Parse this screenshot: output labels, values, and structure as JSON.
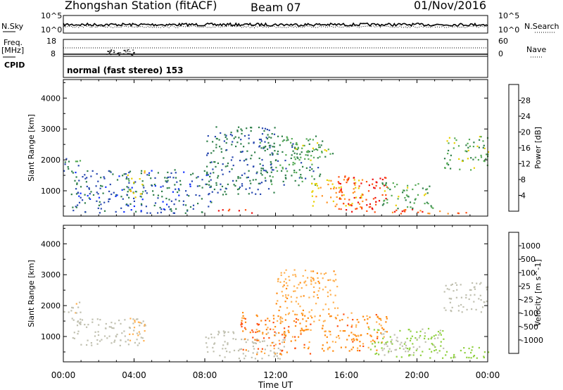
{
  "header": {
    "station": "Zhongshan Station (fitACF)",
    "beam": "Beam 07",
    "date": "01/Nov/2016"
  },
  "status": {
    "nsky_label": "N.Sky",
    "nsearch_label": "N.Search",
    "freq_label_1": "Freq.",
    "freq_label_2": "[MHz]",
    "nave_label": "Nave",
    "cpid_label": "CPID",
    "cpid_text": "normal (fast stereo) 153",
    "noise_ticks_left": [
      "10^5",
      "10^0"
    ],
    "noise_ticks_right": [
      "10^5",
      "10^0"
    ],
    "freq_ticks": [
      "18",
      "8"
    ],
    "nave_ticks": [
      "60",
      "0"
    ]
  },
  "colors": {
    "power": [
      "#1030ff",
      "#2a4ab0",
      "#2f7f4a",
      "#55aa55",
      "#e8d000",
      "#ff9020",
      "#ff5010",
      "#ee1010"
    ],
    "velocity": [
      "#ee1010",
      "#ff5010",
      "#ff8a10",
      "#ffb050",
      "#c0c0b0",
      "#90d040",
      "#3a9a50",
      "#2a6a9a",
      "#1a3aa0"
    ]
  },
  "chart_data": [
    {
      "type": "heatmap",
      "ylabel": "Slant Range [km]",
      "yticks": [
        "1000",
        "2000",
        "3000",
        "4000"
      ],
      "ylim": [
        180,
        4600
      ],
      "colorbar_label": "Power [dB]",
      "colorbar_ticks": [
        "4",
        "8",
        "12",
        "16",
        "20",
        "24",
        "28"
      ],
      "clim": [
        0,
        32
      ],
      "blobs": [
        {
          "t0": 0.0,
          "t1": 1.0,
          "r0": 1600,
          "r1": 2150,
          "v": 10
        },
        {
          "t0": 0.4,
          "t1": 8.4,
          "r0": 300,
          "r1": 1700,
          "v": 7
        },
        {
          "t0": 3.6,
          "t1": 4.6,
          "r0": 800,
          "r1": 1700,
          "v": 17
        },
        {
          "t0": 8.6,
          "t1": 11.0,
          "r0": 280,
          "r1": 420,
          "v": 26
        },
        {
          "t0": 8.0,
          "t1": 12.0,
          "r0": 900,
          "r1": 3100,
          "v": 8
        },
        {
          "t0": 11.0,
          "t1": 14.5,
          "r0": 1200,
          "r1": 2800,
          "v": 11
        },
        {
          "t0": 13.0,
          "t1": 15.2,
          "r0": 2000,
          "r1": 2700,
          "v": 14
        },
        {
          "t0": 14.0,
          "t1": 17.0,
          "r0": 500,
          "r1": 1400,
          "v": 20
        },
        {
          "t0": 15.5,
          "t1": 18.3,
          "r0": 300,
          "r1": 1500,
          "v": 28
        },
        {
          "t0": 17.5,
          "t1": 23.9,
          "r0": 280,
          "r1": 420,
          "v": 26
        },
        {
          "t0": 18.0,
          "t1": 21.0,
          "r0": 450,
          "r1": 1300,
          "v": 13
        },
        {
          "t0": 21.5,
          "t1": 24.0,
          "r0": 1700,
          "r1": 2800,
          "v": 13
        }
      ]
    },
    {
      "type": "heatmap",
      "ylabel": "Slant Range [km]",
      "yticks": [
        "1000",
        "2000",
        "3000",
        "4000"
      ],
      "ylim": [
        180,
        4600
      ],
      "xlabel": "Time UT",
      "xticks": [
        "00:00",
        "04:00",
        "08:00",
        "12:00",
        "16:00",
        "20:00",
        "00:00"
      ],
      "xlim": [
        0,
        24
      ],
      "colorbar_label": "Velocity [m s^-1]",
      "colorbar_ticks": [
        "-1000",
        "-500",
        "-100",
        "-25",
        "25",
        "100",
        "500",
        "1000"
      ],
      "clim": [
        -1500,
        1500
      ],
      "blobs": [
        {
          "t0": 0.0,
          "t1": 1.0,
          "r0": 1600,
          "r1": 2150,
          "v": -120
        },
        {
          "t0": 0.5,
          "t1": 4.5,
          "r0": 700,
          "r1": 1600,
          "v": -60
        },
        {
          "t0": 3.6,
          "t1": 4.6,
          "r0": 800,
          "r1": 1700,
          "v": -200
        },
        {
          "t0": 8.0,
          "t1": 12.5,
          "r0": 300,
          "r1": 1200,
          "v": 60
        },
        {
          "t0": 10.0,
          "t1": 14.0,
          "r0": 400,
          "r1": 1800,
          "v": -700
        },
        {
          "t0": 12.0,
          "t1": 15.5,
          "r0": 1500,
          "r1": 3200,
          "v": -400
        },
        {
          "t0": 14.5,
          "t1": 18.3,
          "r0": 500,
          "r1": 1800,
          "v": -600
        },
        {
          "t0": 17.0,
          "t1": 21.5,
          "r0": 300,
          "r1": 1300,
          "v": 200
        },
        {
          "t0": 18.0,
          "t1": 20.0,
          "r0": 500,
          "r1": 900,
          "v": 0
        },
        {
          "t0": 21.5,
          "t1": 24.0,
          "r0": 1800,
          "r1": 2800,
          "v": 10
        },
        {
          "t0": 21.0,
          "t1": 24.0,
          "r0": 300,
          "r1": 700,
          "v": 300
        }
      ]
    }
  ]
}
